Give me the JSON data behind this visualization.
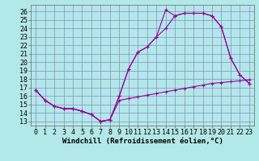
{
  "xlabel": "Windchill (Refroidissement éolien,°C)",
  "bg_color": "#b3e8e8",
  "line_color": "#990099",
  "grid_color": "#8888cc",
  "x_ticks": [
    0,
    1,
    2,
    3,
    4,
    5,
    6,
    7,
    8,
    9,
    10,
    11,
    12,
    13,
    14,
    15,
    16,
    17,
    18,
    19,
    20,
    21,
    22,
    23
  ],
  "y_ticks": [
    13,
    14,
    15,
    16,
    17,
    18,
    19,
    20,
    21,
    22,
    23,
    24,
    25,
    26
  ],
  "xlim": [
    -0.5,
    23.5
  ],
  "ylim": [
    12.5,
    26.8
  ],
  "line1_x": [
    0,
    1,
    2,
    3,
    4,
    5,
    6,
    7,
    8,
    9,
    10,
    11,
    12,
    13,
    14,
    15,
    16,
    17,
    18,
    19,
    20,
    21,
    22,
    23
  ],
  "line1_y": [
    16.7,
    15.5,
    14.8,
    14.5,
    14.5,
    14.2,
    13.8,
    13.0,
    13.2,
    15.5,
    15.7,
    15.9,
    16.1,
    16.3,
    16.5,
    16.7,
    16.9,
    17.1,
    17.3,
    17.5,
    17.6,
    17.7,
    17.8,
    17.9
  ],
  "line2_x": [
    0,
    1,
    2,
    3,
    4,
    5,
    6,
    7,
    8,
    9,
    10,
    11,
    12,
    13,
    14,
    15,
    16,
    17,
    18,
    19,
    20,
    21,
    22,
    23
  ],
  "line2_y": [
    16.7,
    15.5,
    14.8,
    14.5,
    14.5,
    14.2,
    13.8,
    13.0,
    13.2,
    16.0,
    19.2,
    21.2,
    21.8,
    23.0,
    24.0,
    25.5,
    25.8,
    25.8,
    25.8,
    25.5,
    24.2,
    20.5,
    18.5,
    17.5
  ],
  "line3_x": [
    0,
    1,
    2,
    3,
    4,
    5,
    6,
    7,
    8,
    9,
    10,
    11,
    12,
    13,
    14,
    15,
    16,
    17,
    18,
    19,
    20,
    21,
    22,
    23
  ],
  "line3_y": [
    16.7,
    15.5,
    14.8,
    14.5,
    14.5,
    14.2,
    13.8,
    13.0,
    13.2,
    16.0,
    19.2,
    21.2,
    21.8,
    23.0,
    26.2,
    25.5,
    25.8,
    25.8,
    25.8,
    25.5,
    24.2,
    20.5,
    18.5,
    17.5
  ],
  "xlabel_fontsize": 6.5,
  "tick_fontsize": 6,
  "marker": "+"
}
